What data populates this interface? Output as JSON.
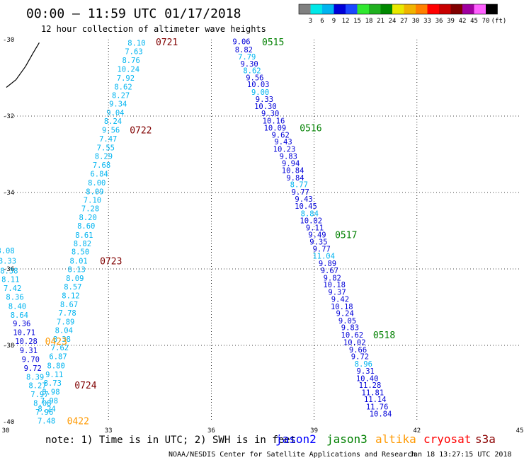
{
  "chart_data": {
    "type": "scatter",
    "title": "00:00 – 11:59 UTC 01/17/2018",
    "subtitle": "12 hour collection of altimeter wave heights",
    "xlim": [
      30,
      45
    ],
    "ylim": [
      -40,
      -30
    ],
    "x_ticks": [
      "30",
      "33",
      "36",
      "39",
      "42",
      "45"
    ],
    "y_ticks": [
      "-30",
      "-32",
      "-34",
      "-36",
      "-38",
      "-40"
    ],
    "grid": true,
    "colorbar": {
      "unit": "(ft)",
      "labels": [
        "3",
        "6",
        "9",
        "12",
        "15",
        "18",
        "21",
        "24",
        "27",
        "30",
        "33",
        "36",
        "39",
        "42",
        "45",
        "70"
      ],
      "colors": [
        "#808080",
        "#00e8e8",
        "#00b4f0",
        "#0000d8",
        "#1b48ff",
        "#30e830",
        "#20b020",
        "#008800",
        "#e8e800",
        "#f0b400",
        "#ff8000",
        "#ff0000",
        "#c80000",
        "#800000",
        "#a000a0",
        "#ff60ff",
        "#000000"
      ]
    },
    "legend": [
      {
        "name": "jason2",
        "color": "#0000ff"
      },
      {
        "name": "jason3",
        "color": "#008000"
      },
      {
        "name": "altika",
        "color": "#ff9900"
      },
      {
        "name": "cryosat",
        "color": "#ff0000"
      },
      {
        "name": "s3a",
        "color": "#8b0000"
      }
    ],
    "note": "note: 1) Time is in UTC; 2) SWH is in feet",
    "credit": "NOAA/NESDIS Center for Satellite Applications and Research",
    "timestamp": "Jan 18 13:27:15 UTC 2018",
    "series": [
      {
        "name": "track-a",
        "color": "#00b4f0",
        "points": [
          {
            "x": 33.82,
            "y": -30.08,
            "v": "8.10"
          },
          {
            "x": 33.74,
            "y": -30.31,
            "v": "7.63"
          },
          {
            "x": 33.66,
            "y": -30.54,
            "v": "8.76"
          },
          {
            "x": 33.58,
            "y": -30.77,
            "v": "10.24"
          },
          {
            "x": 33.5,
            "y": -31.0,
            "v": "7.92"
          },
          {
            "x": 33.43,
            "y": -31.23,
            "v": "8.62"
          },
          {
            "x": 33.36,
            "y": -31.45,
            "v": "8.27"
          },
          {
            "x": 33.28,
            "y": -31.68,
            "v": "9.34"
          },
          {
            "x": 33.2,
            "y": -31.91,
            "v": "9.04"
          },
          {
            "x": 33.13,
            "y": -32.13,
            "v": "8.24"
          },
          {
            "x": 33.07,
            "y": -32.36,
            "v": "9.56"
          },
          {
            "x": 32.99,
            "y": -32.59,
            "v": "7.47"
          },
          {
            "x": 32.92,
            "y": -32.82,
            "v": "7.55"
          },
          {
            "x": 32.86,
            "y": -33.05,
            "v": "8.29"
          },
          {
            "x": 32.8,
            "y": -33.28,
            "v": "7.68"
          },
          {
            "x": 32.73,
            "y": -33.51,
            "v": "6.84"
          },
          {
            "x": 32.66,
            "y": -33.74,
            "v": "8.00"
          },
          {
            "x": 32.6,
            "y": -33.97,
            "v": "8.09"
          },
          {
            "x": 32.53,
            "y": -34.19,
            "v": "7.10"
          },
          {
            "x": 32.47,
            "y": -34.42,
            "v": "7.28"
          },
          {
            "x": 32.4,
            "y": -34.65,
            "v": "8.20"
          },
          {
            "x": 32.35,
            "y": -34.87,
            "v": "8.60"
          },
          {
            "x": 32.29,
            "y": -35.11,
            "v": "8.61"
          },
          {
            "x": 32.24,
            "y": -35.33,
            "v": "8.82"
          },
          {
            "x": 32.18,
            "y": -35.55,
            "v": "8.50"
          },
          {
            "x": 32.13,
            "y": -35.79,
            "v": "8.01"
          },
          {
            "x": 32.07,
            "y": -36.01,
            "v": "8.13"
          },
          {
            "x": 32.02,
            "y": -36.24,
            "v": "8.09"
          },
          {
            "x": 31.96,
            "y": -36.46,
            "v": "8.57"
          },
          {
            "x": 31.9,
            "y": -36.69,
            "v": "8.12"
          },
          {
            "x": 31.85,
            "y": -36.93,
            "v": "8.67"
          },
          {
            "x": 31.8,
            "y": -37.15,
            "v": "7.78"
          },
          {
            "x": 31.75,
            "y": -37.38,
            "v": "7.89"
          },
          {
            "x": 31.7,
            "y": -37.6,
            "v": "8.04"
          },
          {
            "x": 31.64,
            "y": -37.83,
            "v": "8.38"
          },
          {
            "x": 31.58,
            "y": -38.06,
            "v": "7.62"
          },
          {
            "x": 31.53,
            "y": -38.29,
            "v": "6.87"
          },
          {
            "x": 31.47,
            "y": -38.53,
            "v": "8.80"
          },
          {
            "x": 31.42,
            "y": -38.76,
            "v": "9.11"
          },
          {
            "x": 31.37,
            "y": -38.98,
            "v": "8.73"
          },
          {
            "x": 31.32,
            "y": -39.21,
            "v": "8.98"
          },
          {
            "x": 31.27,
            "y": -39.44,
            "v": "7.98"
          },
          {
            "x": 31.2,
            "y": -39.66,
            "v": "8.24"
          }
        ]
      },
      {
        "name": "track-b",
        "color": "#0000d8",
        "points": [
          {
            "x": 30.0,
            "y": -35.52,
            "v": "8.08"
          },
          {
            "x": 30.05,
            "y": -35.79,
            "v": "8.33"
          },
          {
            "x": 30.1,
            "y": -36.05,
            "v": "8.38"
          },
          {
            "x": 30.14,
            "y": -36.27,
            "v": "8.11"
          },
          {
            "x": 30.2,
            "y": -36.5,
            "v": "7.42"
          },
          {
            "x": 30.27,
            "y": -36.73,
            "v": "8.36"
          },
          {
            "x": 30.34,
            "y": -36.97,
            "v": "8.40"
          },
          {
            "x": 30.4,
            "y": -37.2,
            "v": "8.64"
          },
          {
            "x": 30.47,
            "y": -37.43,
            "v": "9.36"
          },
          {
            "x": 30.54,
            "y": -37.66,
            "v": "10.71"
          },
          {
            "x": 30.6,
            "y": -37.89,
            "v": "10.28"
          },
          {
            "x": 30.67,
            "y": -38.13,
            "v": "9.31"
          },
          {
            "x": 30.73,
            "y": -38.36,
            "v": "9.70"
          },
          {
            "x": 30.79,
            "y": -38.59,
            "v": "9.72"
          },
          {
            "x": 30.86,
            "y": -38.82,
            "v": "8.39"
          },
          {
            "x": 30.93,
            "y": -39.05,
            "v": "8.27"
          },
          {
            "x": 30.99,
            "y": -39.28,
            "v": "7.97"
          },
          {
            "x": 31.07,
            "y": -39.51,
            "v": "8.08"
          },
          {
            "x": 31.13,
            "y": -39.74,
            "v": "7.96"
          },
          {
            "x": 31.19,
            "y": -39.97,
            "v": "7.48"
          }
        ]
      },
      {
        "name": "track-c",
        "color": "#0000d8",
        "points": [
          {
            "x": 36.88,
            "y": -30.05,
            "v": "9.06"
          },
          {
            "x": 36.95,
            "y": -30.26,
            "v": "8.82"
          },
          {
            "x": 37.04,
            "y": -30.44,
            "v": "7.79"
          },
          {
            "x": 37.11,
            "y": -30.63,
            "v": "9.30"
          },
          {
            "x": 37.19,
            "y": -30.81,
            "v": "8.62"
          },
          {
            "x": 37.27,
            "y": -30.99,
            "v": "9.56"
          },
          {
            "x": 37.37,
            "y": -31.17,
            "v": "10.03"
          },
          {
            "x": 37.43,
            "y": -31.37,
            "v": "9.00"
          },
          {
            "x": 37.55,
            "y": -31.56,
            "v": "9.33"
          },
          {
            "x": 37.58,
            "y": -31.74,
            "v": "10.30"
          },
          {
            "x": 37.72,
            "y": -31.93,
            "v": "9.30"
          },
          {
            "x": 37.82,
            "y": -32.12,
            "v": "10.16"
          },
          {
            "x": 37.86,
            "y": -32.31,
            "v": "10.09"
          },
          {
            "x": 38.02,
            "y": -32.49,
            "v": "9.62"
          },
          {
            "x": 38.1,
            "y": -32.67,
            "v": "9.43"
          },
          {
            "x": 38.13,
            "y": -32.86,
            "v": "10.23"
          },
          {
            "x": 38.25,
            "y": -33.05,
            "v": "9.83"
          },
          {
            "x": 38.32,
            "y": -33.23,
            "v": "9.94"
          },
          {
            "x": 38.38,
            "y": -33.42,
            "v": "10.84"
          },
          {
            "x": 38.45,
            "y": -33.61,
            "v": "9.84"
          },
          {
            "x": 38.56,
            "y": -33.79,
            "v": "8.77"
          },
          {
            "x": 38.6,
            "y": -33.98,
            "v": "9.77"
          },
          {
            "x": 38.7,
            "y": -34.17,
            "v": "9.43"
          },
          {
            "x": 38.76,
            "y": -34.35,
            "v": "10.45"
          },
          {
            "x": 38.87,
            "y": -34.55,
            "v": "8.84"
          },
          {
            "x": 38.91,
            "y": -34.73,
            "v": "10.02"
          },
          {
            "x": 39.02,
            "y": -34.92,
            "v": "9.11"
          },
          {
            "x": 39.09,
            "y": -35.1,
            "v": "9.49"
          },
          {
            "x": 39.13,
            "y": -35.29,
            "v": "9.35"
          },
          {
            "x": 39.22,
            "y": -35.47,
            "v": "9.77"
          },
          {
            "x": 39.28,
            "y": -35.66,
            "v": "11.04"
          },
          {
            "x": 39.39,
            "y": -35.85,
            "v": "9.89"
          },
          {
            "x": 39.45,
            "y": -36.04,
            "v": "9.67"
          },
          {
            "x": 39.53,
            "y": -36.23,
            "v": "9.82"
          },
          {
            "x": 39.59,
            "y": -36.41,
            "v": "10.18"
          },
          {
            "x": 39.67,
            "y": -36.6,
            "v": "9.37"
          },
          {
            "x": 39.76,
            "y": -36.79,
            "v": "9.42"
          },
          {
            "x": 39.81,
            "y": -36.98,
            "v": "10.18"
          },
          {
            "x": 39.9,
            "y": -37.16,
            "v": "9.24"
          },
          {
            "x": 39.97,
            "y": -37.35,
            "v": "9.05"
          },
          {
            "x": 40.05,
            "y": -37.53,
            "v": "9.83"
          },
          {
            "x": 40.11,
            "y": -37.72,
            "v": "10.62"
          },
          {
            "x": 40.18,
            "y": -37.92,
            "v": "10.02"
          },
          {
            "x": 40.28,
            "y": -38.11,
            "v": "9.66"
          },
          {
            "x": 40.34,
            "y": -38.29,
            "v": "9.72"
          },
          {
            "x": 40.44,
            "y": -38.48,
            "v": "8.96"
          },
          {
            "x": 40.5,
            "y": -38.67,
            "v": "9.31"
          },
          {
            "x": 40.55,
            "y": -38.86,
            "v": "10.40"
          },
          {
            "x": 40.63,
            "y": -39.04,
            "v": "11.28"
          },
          {
            "x": 40.71,
            "y": -39.23,
            "v": "11.81"
          },
          {
            "x": 40.78,
            "y": -39.41,
            "v": "11.14"
          },
          {
            "x": 40.84,
            "y": -39.6,
            "v": "11.76"
          },
          {
            "x": 40.94,
            "y": -39.79,
            "v": "10.84"
          }
        ]
      }
    ],
    "light_points": [
      {
        "x": 37.04,
        "y": -30.44
      },
      {
        "x": 37.19,
        "y": -30.81
      },
      {
        "x": 37.43,
        "y": -31.37
      },
      {
        "x": 38.56,
        "y": -33.79
      },
      {
        "x": 38.87,
        "y": -34.55
      },
      {
        "x": 39.28,
        "y": -35.66
      },
      {
        "x": 40.44,
        "y": -38.48
      },
      {
        "x": 30.0,
        "y": -35.52
      },
      {
        "x": 30.05,
        "y": -35.79
      },
      {
        "x": 30.1,
        "y": -36.05
      },
      {
        "x": 30.14,
        "y": -36.27
      },
      {
        "x": 30.2,
        "y": -36.5
      },
      {
        "x": 30.27,
        "y": -36.73
      },
      {
        "x": 30.34,
        "y": -36.97
      },
      {
        "x": 30.4,
        "y": -37.2
      },
      {
        "x": 30.86,
        "y": -38.82
      },
      {
        "x": 30.93,
        "y": -39.05
      },
      {
        "x": 30.99,
        "y": -39.28
      },
      {
        "x": 31.07,
        "y": -39.51
      },
      {
        "x": 31.13,
        "y": -39.74
      },
      {
        "x": 31.19,
        "y": -39.97
      }
    ],
    "time_labels": [
      {
        "text": "0721",
        "x": 34.38,
        "y": -30.06,
        "color": "#800000"
      },
      {
        "text": "0515",
        "x": 37.48,
        "y": -30.06,
        "color": "#008000"
      },
      {
        "text": "0722",
        "x": 33.62,
        "y": -32.36,
        "color": "#800000"
      },
      {
        "text": "0516",
        "x": 38.58,
        "y": -32.31,
        "color": "#008000"
      },
      {
        "text": "0517",
        "x": 39.61,
        "y": -35.1,
        "color": "#008000"
      },
      {
        "text": "0723",
        "x": 32.75,
        "y": -35.79,
        "color": "#800000"
      },
      {
        "text": "0423",
        "x": 31.15,
        "y": -37.89,
        "color": "#ff9900"
      },
      {
        "text": "0518",
        "x": 40.72,
        "y": -37.72,
        "color": "#008000"
      },
      {
        "text": "0724",
        "x": 32.01,
        "y": -39.04,
        "color": "#800000"
      },
      {
        "text": "0422",
        "x": 31.79,
        "y": -39.97,
        "color": "#ff9900"
      }
    ],
    "coast": [
      {
        "x": 30.98,
        "y": -30.08
      },
      {
        "x": 30.8,
        "y": -30.35
      },
      {
        "x": 30.58,
        "y": -30.7
      },
      {
        "x": 30.3,
        "y": -31.05
      },
      {
        "x": 30.02,
        "y": -31.25
      }
    ]
  }
}
